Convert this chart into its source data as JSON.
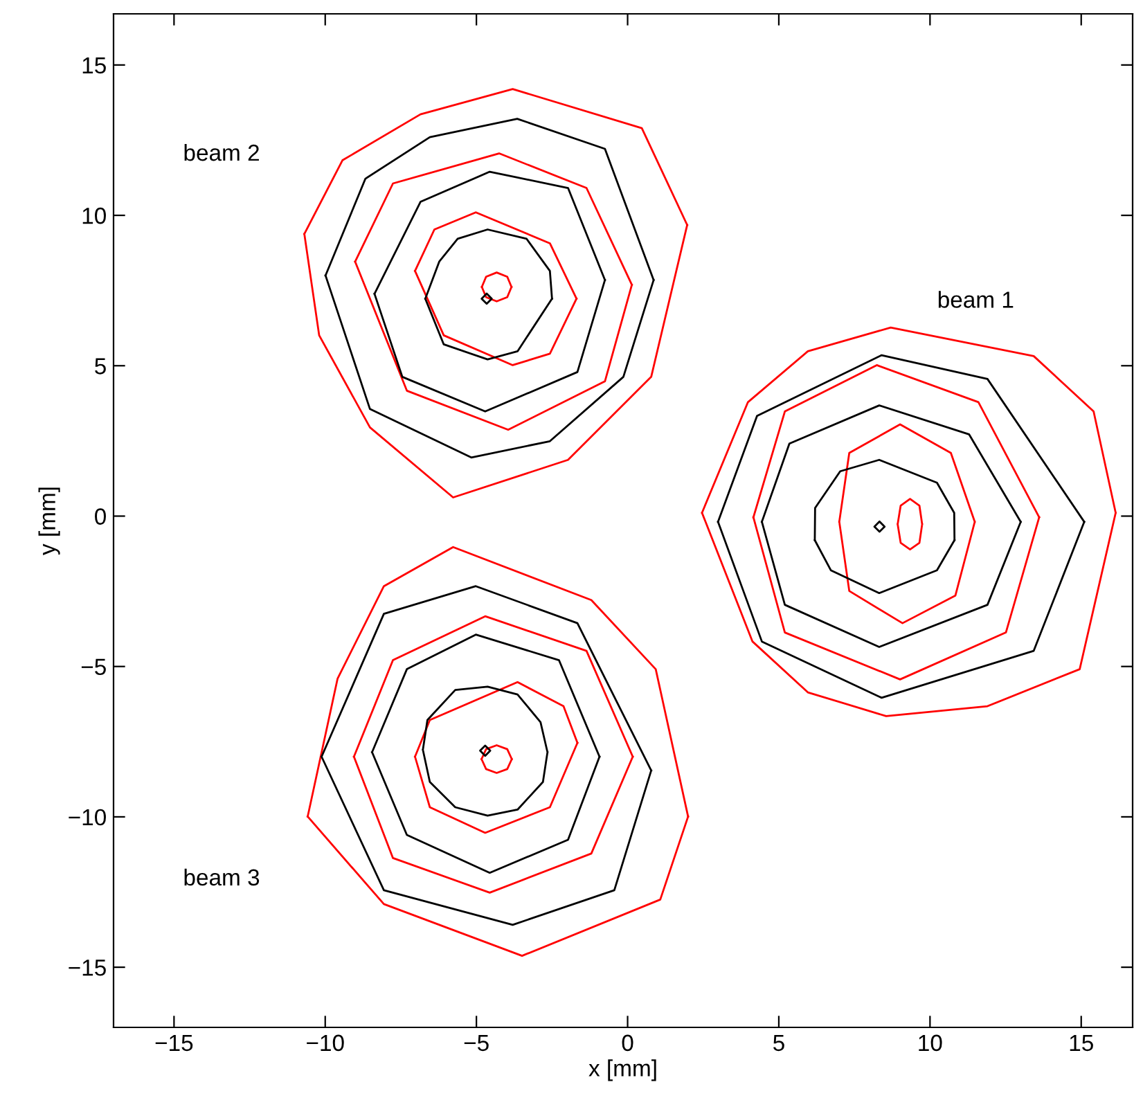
{
  "chart_data": {
    "type": "line",
    "xlabel": "x [mm]",
    "ylabel": "y [mm]",
    "xlim": [
      -17,
      16.7
    ],
    "ylim": [
      -17,
      16.7
    ],
    "xticks": [
      -15,
      -10,
      -5,
      0,
      5,
      10,
      15
    ],
    "yticks": [
      -15,
      -10,
      -5,
      0,
      5,
      10,
      15
    ],
    "annotations": [
      "beam 2",
      "beam 1",
      "beam 3"
    ],
    "series": [
      {
        "color": "#ff0000",
        "x": [
          -10.69,
          -9.43,
          -6.85,
          -3.8,
          0.47,
          1.97
        ],
        "values": [
          9.38,
          11.83,
          13.36,
          14.2,
          12.9,
          9.68
        ]
      },
      {
        "color": "#ff0000",
        "x": [
          -10.69,
          -10.2,
          -8.52,
          -5.77,
          -1.97,
          0.78,
          1.97
        ],
        "values": [
          9.38,
          6.01,
          2.95,
          0.62,
          1.87,
          4.63,
          9.68
        ]
      },
      {
        "color": "#000000",
        "x": [
          -9.99,
          -8.67,
          -6.54,
          -3.65,
          -0.75,
          0.86
        ],
        "values": [
          8.0,
          11.22,
          12.6,
          13.21,
          12.21,
          7.85
        ]
      },
      {
        "color": "#000000",
        "x": [
          -9.99,
          -8.52,
          -5.17,
          -2.57,
          -0.14,
          0.86
        ],
        "values": [
          8.0,
          3.56,
          1.95,
          2.49,
          4.63,
          7.85
        ]
      },
      {
        "color": "#ff0000",
        "x": [
          -9.01,
          -7.76,
          -4.25,
          -1.36,
          0.14
        ],
        "values": [
          8.46,
          11.06,
          12.06,
          10.91,
          7.69
        ]
      },
      {
        "color": "#ff0000",
        "x": [
          -9.01,
          -7.3,
          -3.95,
          -0.75,
          0.14
        ],
        "values": [
          8.46,
          4.17,
          2.87,
          4.48,
          7.69
        ]
      },
      {
        "color": "#000000",
        "x": [
          -8.37,
          -6.85,
          -4.56,
          -1.97,
          -0.75
        ],
        "values": [
          7.39,
          10.45,
          11.45,
          10.91,
          7.85
        ]
      },
      {
        "color": "#000000",
        "x": [
          -8.37,
          -7.45,
          -4.71,
          -1.66,
          -0.75
        ],
        "values": [
          7.39,
          4.63,
          3.48,
          4.79,
          7.85
        ]
      },
      {
        "color": "#ff0000",
        "x": [
          -7.03,
          -6.39,
          -5.02,
          -2.57,
          -1.69
        ],
        "values": [
          8.15,
          9.53,
          10.1,
          9.07,
          7.23
        ]
      },
      {
        "color": "#ff0000",
        "x": [
          -7.03,
          -6.08,
          -3.8,
          -2.57,
          -1.69
        ],
        "values": [
          8.15,
          6.01,
          5.02,
          5.4,
          7.23
        ]
      },
      {
        "color": "#000000",
        "x": [
          -6.69,
          -6.23,
          -5.62,
          -4.63,
          -3.34,
          -2.57,
          -2.5
        ],
        "values": [
          7.23,
          8.46,
          9.22,
          9.53,
          9.22,
          8.15,
          7.23
        ]
      },
      {
        "color": "#000000",
        "x": [
          -6.69,
          -6.08,
          -4.63,
          -3.64,
          -2.5
        ],
        "values": [
          7.23,
          5.71,
          5.21,
          5.48,
          7.23
        ]
      },
      {
        "color": "#ff0000",
        "x": [
          -4.82,
          -4.68,
          -4.33,
          -3.98,
          -3.84
        ],
        "values": [
          7.62,
          7.96,
          8.1,
          7.96,
          7.62
        ]
      },
      {
        "color": "#ff0000",
        "x": [
          -4.82,
          -4.68,
          -4.33,
          -3.98,
          -3.84
        ],
        "values": [
          7.62,
          7.28,
          7.14,
          7.28,
          7.62
        ]
      },
      {
        "type": "scatter",
        "marker": "diamond",
        "color": "#000000",
        "x": [
          -4.66
        ],
        "values": [
          7.23
        ]
      },
      {
        "color": "#ff0000",
        "x": [
          2.46,
          3.98,
          5.96,
          8.7,
          13.43,
          15.41,
          16.14,
          null,
          16.14,
          14.95,
          11.9,
          8.55,
          5.96,
          4.13,
          2.46
        ],
        "values": [
          0.11,
          3.79,
          5.48,
          6.27,
          5.32,
          3.48,
          0.11,
          null,
          0.11,
          -5.09,
          -6.32,
          -6.65,
          -5.86,
          -4.17,
          0.11
        ]
      },
      {
        "color": "#000000",
        "x": [
          2.99,
          4.28,
          8.4,
          11.9,
          15.1
        ],
        "values": [
          -0.19,
          3.33,
          5.35,
          4.56,
          -0.19
        ]
      },
      {
        "color": "#000000",
        "x": [
          2.99,
          4.44,
          8.4,
          13.43,
          15.1
        ],
        "values": [
          -0.19,
          -4.17,
          -6.04,
          -4.48,
          -0.19
        ]
      },
      {
        "color": "#ff0000",
        "x": [
          4.16,
          5.2,
          8.24,
          11.6,
          13.61
        ],
        "values": [
          -0.04,
          3.48,
          5.02,
          3.79,
          -0.04
        ]
      },
      {
        "color": "#ff0000",
        "x": [
          4.16,
          5.2,
          9.01,
          12.51,
          13.61
        ],
        "values": [
          -0.04,
          -3.87,
          -5.43,
          -3.87,
          -0.04
        ]
      },
      {
        "color": "#000000",
        "x": [
          4.44,
          5.35,
          8.32,
          11.29,
          13.0
        ],
        "values": [
          -0.19,
          2.41,
          3.68,
          2.72,
          -0.19
        ]
      },
      {
        "color": "#000000",
        "x": [
          4.44,
          5.2,
          8.32,
          11.9,
          13.0
        ],
        "values": [
          -0.19,
          -2.95,
          -4.35,
          -2.95,
          -0.19
        ]
      },
      {
        "color": "#ff0000",
        "x": [
          7.0,
          7.33,
          9.01,
          10.69,
          11.48,
          null,
          11.48,
          10.84,
          9.09,
          7.33,
          7.0
        ],
        "values": [
          -0.19,
          2.1,
          3.05,
          2.1,
          -0.19,
          null,
          -0.19,
          -2.64,
          -3.56,
          -2.49,
          -0.19
        ]
      },
      {
        "color": "#000000",
        "x": [
          6.19,
          6.2,
          7.03,
          8.32,
          10.23,
          10.8,
          10.81
        ],
        "values": [
          -0.8,
          0.27,
          1.49,
          1.87,
          1.11,
          0.11,
          -0.8
        ]
      },
      {
        "color": "#000000",
        "x": [
          6.19,
          6.72,
          8.32,
          10.23,
          10.81
        ],
        "values": [
          -0.8,
          -1.8,
          -2.56,
          -1.8,
          -0.8
        ]
      },
      {
        "color": "#ff0000",
        "x": [
          8.93,
          9.03,
          9.34,
          9.65,
          9.74,
          null,
          9.74,
          9.65,
          9.34,
          9.03,
          8.93
        ],
        "values": [
          -0.27,
          0.35,
          0.57,
          0.35,
          -0.27,
          null,
          -0.27,
          -0.89,
          -1.11,
          -0.89,
          -0.27
        ]
      },
      {
        "type": "scatter",
        "marker": "diamond",
        "color": "#000000",
        "x": [
          8.33
        ],
        "values": [
          -0.35
        ]
      },
      {
        "color": "#ff0000",
        "x": [
          -10.58,
          -9.59,
          -8.06,
          -5.77,
          -1.2,
          0.93,
          2.0
        ],
        "values": [
          -9.99,
          -5.4,
          -2.33,
          -1.03,
          -2.79,
          -5.09,
          -9.99
        ]
      },
      {
        "color": "#ff0000",
        "x": [
          -10.58,
          -8.06,
          -3.49,
          1.08,
          2.0
        ],
        "values": [
          -9.99,
          -12.9,
          -14.62,
          -12.75,
          -9.99
        ]
      },
      {
        "color": "#000000",
        "x": [
          -10.12,
          -8.06,
          -5.02,
          -1.66,
          0.78
        ],
        "values": [
          -8.0,
          -3.25,
          -2.33,
          -3.56,
          -8.46
        ]
      },
      {
        "color": "#000000",
        "x": [
          -10.12,
          -8.06,
          -3.8,
          -0.44,
          0.78
        ],
        "values": [
          -8.0,
          -12.44,
          -13.59,
          -12.44,
          -8.46
        ]
      },
      {
        "color": "#ff0000",
        "x": [
          -9.05,
          -7.76,
          -4.71,
          -1.36,
          0.17
        ],
        "values": [
          -8.0,
          -4.79,
          -3.33,
          -4.48,
          -8.0
        ]
      },
      {
        "color": "#ff0000",
        "x": [
          -9.05,
          -7.76,
          -4.56,
          -1.2,
          0.17
        ],
        "values": [
          -8.0,
          -11.37,
          -12.52,
          -11.22,
          -8.0
        ]
      },
      {
        "color": "#000000",
        "x": [
          -8.45,
          -7.3,
          -5.02,
          -2.27,
          -0.93
        ],
        "values": [
          -7.85,
          -5.09,
          -3.94,
          -4.79,
          -8.0
        ]
      },
      {
        "color": "#000000",
        "x": [
          -8.45,
          -7.3,
          -4.56,
          -1.97,
          -0.93
        ],
        "values": [
          -7.85,
          -10.6,
          -11.86,
          -10.76,
          -8.0
        ]
      },
      {
        "color": "#ff0000",
        "x": [
          -7.03,
          -6.54,
          -3.64,
          -2.12,
          -1.66
        ],
        "values": [
          -8.0,
          -6.78,
          -5.52,
          -6.32,
          -7.54
        ]
      },
      {
        "color": "#ff0000",
        "x": [
          -7.03,
          -6.54,
          -4.71,
          -2.57,
          -1.66
        ],
        "values": [
          -8.0,
          -9.68,
          -10.53,
          -9.68,
          -7.54
        ]
      },
      {
        "color": "#000000",
        "x": [
          -6.77,
          -6.62,
          -5.7,
          -4.63,
          -3.64,
          -2.88,
          -2.65,
          null,
          -2.65,
          -2.8,
          -3.64,
          -4.63,
          -5.7,
          -6.54,
          -6.77
        ],
        "values": [
          -7.77,
          -6.78,
          -5.78,
          -5.67,
          -5.93,
          -6.85,
          -7.85,
          null,
          -7.85,
          -8.84,
          -9.76,
          -9.96,
          -9.68,
          -8.84,
          -7.77
        ]
      },
      {
        "color": "#ff0000",
        "x": [
          -4.83,
          -4.68,
          -4.33,
          -3.98,
          -3.83
        ],
        "values": [
          -8.08,
          -7.75,
          -7.62,
          -7.75,
          -8.08
        ]
      },
      {
        "color": "#ff0000",
        "x": [
          -4.83,
          -4.68,
          -4.33,
          -3.98,
          -3.83
        ],
        "values": [
          -8.08,
          -8.41,
          -8.54,
          -8.41,
          -8.08
        ]
      },
      {
        "type": "scatter",
        "marker": "diamond",
        "color": "#000000",
        "x": [
          -4.71
        ],
        "values": [
          -7.8
        ]
      }
    ]
  }
}
